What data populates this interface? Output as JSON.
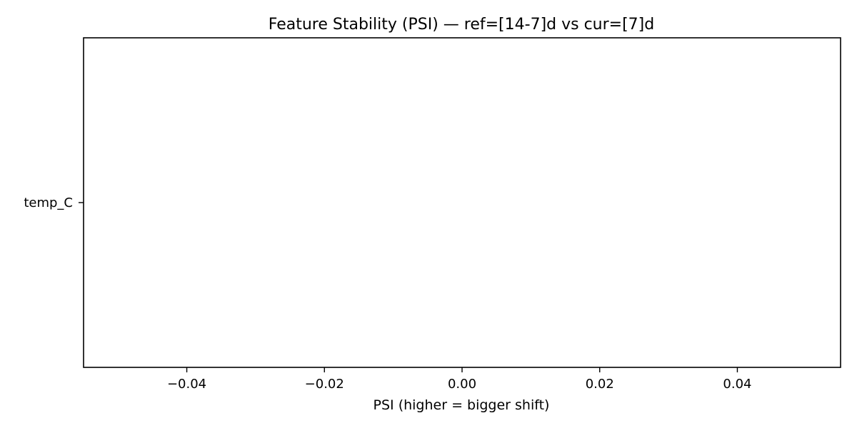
{
  "chart_data": {
    "type": "bar",
    "orientation": "horizontal",
    "title": "Feature Stability (PSI) — ref=[14-7]d vs cur=[7]d",
    "xlabel": "PSI (higher = bigger shift)",
    "ylabel": "",
    "categories": [
      "temp_C"
    ],
    "values": [
      0
    ],
    "xlim": [
      -0.055,
      0.055
    ],
    "xticks": [
      -0.04,
      -0.02,
      0.0,
      0.02,
      0.04
    ],
    "xtick_labels": [
      "−0.04",
      "−0.02",
      "0.00",
      "0.02",
      "0.04"
    ],
    "grid": false,
    "legend": "none",
    "bar_color": "#1f77b4"
  }
}
